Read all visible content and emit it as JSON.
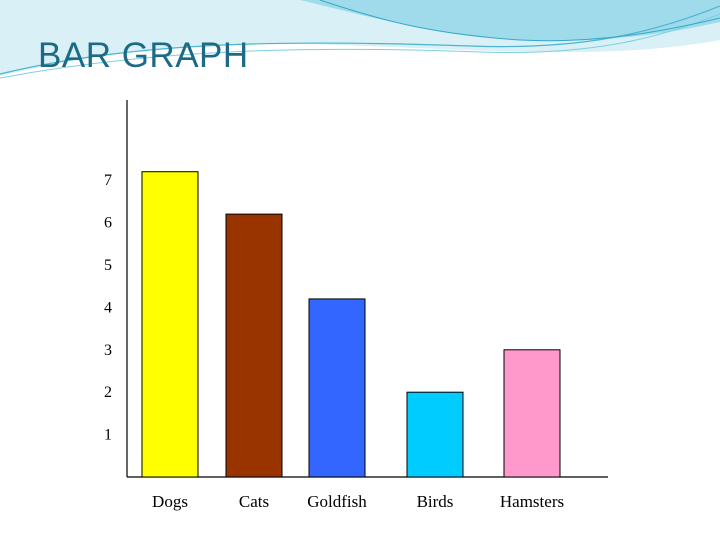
{
  "slide": {
    "title": "BAR GRAPH",
    "title_color": "#1c6a86",
    "decoration_colors": [
      "#bfe6f0",
      "#7fcfe3",
      "#35a8c9"
    ]
  },
  "chart_data": {
    "type": "bar",
    "title": "",
    "xlabel": "",
    "ylabel": "",
    "categories": [
      "Dogs",
      "Cats",
      "Goldfish",
      "Birds",
      "Hamsters"
    ],
    "values": [
      7.2,
      6.2,
      4.2,
      2.0,
      3.0
    ],
    "colors": [
      "#ffff00",
      "#993300",
      "#3366ff",
      "#00ccff",
      "#ff99cc"
    ],
    "yticks": [
      1,
      2,
      3,
      4,
      5,
      6,
      7
    ],
    "ylim": [
      0,
      8
    ],
    "grid": false,
    "legend": "none"
  }
}
